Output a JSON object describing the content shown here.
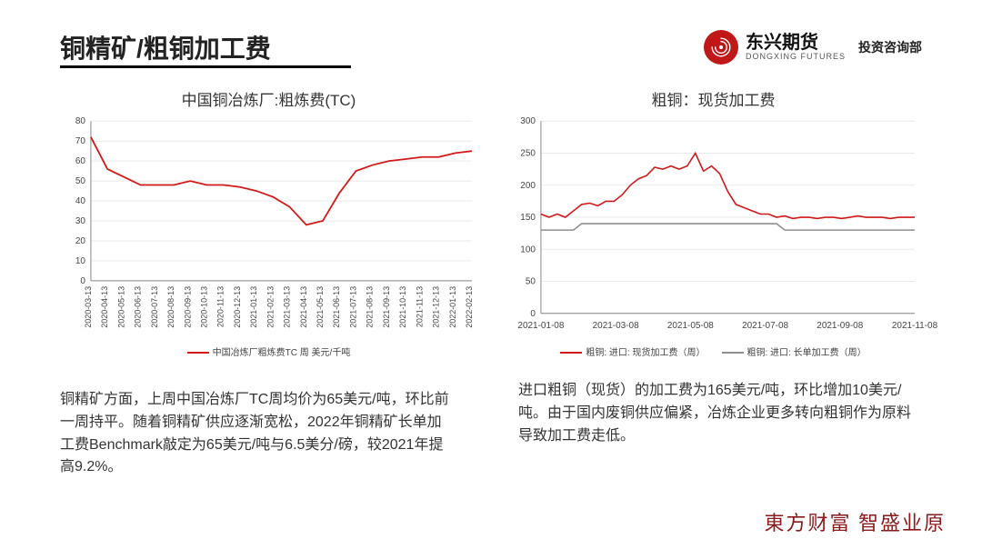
{
  "header": {
    "title": "铜精矿/粗铜加工费",
    "logo_cn": "东兴期货",
    "logo_en": "DONGXING FUTURES",
    "dept": "投资咨询部"
  },
  "chart_left": {
    "type": "line",
    "title": "中国铜冶炼厂:粗炼费(TC)",
    "ylim": [
      0,
      80
    ],
    "ytick_step": 10,
    "series_color": "#d11919",
    "axis_color": "#888888",
    "grid_color": "#e9e9e9",
    "line_width": 1.8,
    "legend_label": "中国冶炼厂粗炼费TC 周 美元/千吨",
    "x_labels": [
      "2020-03-13",
      "2020-04-13",
      "2020-05-13",
      "2020-06-13",
      "2020-07-13",
      "2020-08-13",
      "2020-09-13",
      "2020-10-13",
      "2020-11-13",
      "2020-12-13",
      "2021-01-13",
      "2021-02-13",
      "2021-03-13",
      "2021-04-13",
      "2021-05-13",
      "2021-06-13",
      "2021-07-13",
      "2021-08-13",
      "2021-09-13",
      "2021-10-13",
      "2021-11-13",
      "2021-12-13",
      "2022-01-13",
      "2022-02-13"
    ],
    "values": [
      72,
      56,
      52,
      48,
      48,
      48,
      50,
      48,
      48,
      47,
      45,
      42,
      37,
      28,
      30,
      44,
      55,
      58,
      60,
      61,
      62,
      62,
      64,
      65
    ]
  },
  "chart_right": {
    "type": "line",
    "title": "粗铜：现货加工费",
    "ylim": [
      0,
      300
    ],
    "ytick_step": 50,
    "axis_color": "#888888",
    "grid_color": "#e9e9e9",
    "line_width": 1.6,
    "x_labels": [
      "2021-01-08",
      "2021-03-08",
      "2021-05-08",
      "2021-07-08",
      "2021-09-08",
      "2021-11-08"
    ],
    "legend": [
      {
        "label": "粗铜: 进口: 现货加工费（周）",
        "color": "#d11919"
      },
      {
        "label": "粗铜: 进口: 长单加工费（周）",
        "color": "#8f8f8f"
      }
    ],
    "series": [
      {
        "name": "spot",
        "color": "#d11919",
        "values": [
          155,
          150,
          155,
          150,
          160,
          170,
          172,
          168,
          175,
          175,
          185,
          200,
          210,
          215,
          228,
          225,
          230,
          225,
          230,
          250,
          222,
          230,
          218,
          190,
          170,
          165,
          160,
          155,
          155,
          150,
          152,
          148,
          150,
          150,
          148,
          150,
          150,
          148,
          150,
          152,
          150,
          150,
          150,
          148,
          150,
          150,
          150
        ]
      },
      {
        "name": "long",
        "color": "#8f8f8f",
        "values": [
          130,
          130,
          130,
          130,
          130,
          140,
          140,
          140,
          140,
          140,
          140,
          140,
          140,
          140,
          140,
          140,
          140,
          140,
          140,
          140,
          140,
          140,
          140,
          140,
          140,
          140,
          140,
          140,
          140,
          140,
          130,
          130,
          130,
          130,
          130,
          130,
          130,
          130,
          130,
          130,
          130,
          130,
          130,
          130,
          130,
          130,
          130
        ]
      }
    ]
  },
  "desc_left": "铜精矿方面，上周中国冶炼厂TC周均价为65美元/吨，环比前一周持平。随着铜精矿供应逐渐宽松，2022年铜精矿长单加工费Benchmark敲定为65美元/吨与6.5美分/磅，较2021年提高9.2%。",
  "desc_right": "进口粗铜（现货）的加工费为165美元/吨，环比增加10美元/吨。由于国内废铜供应偏紧，冶炼企业更多转向粗铜作为原料导致加工费走低。",
  "footer": "東方财富 智盛业原"
}
